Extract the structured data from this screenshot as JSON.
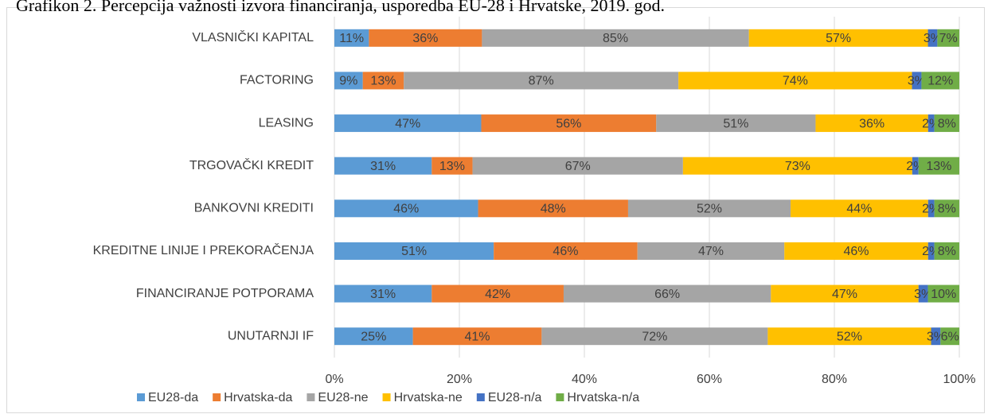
{
  "chart_data": {
    "type": "bar",
    "orientation": "horizontal",
    "stacked": "percent",
    "title": "Grafikon 2. Percepcija važnosti izvora financiranja, usporedba EU-28 i Hrvatske, 2019. god.",
    "categories": [
      "VLASNIČKI KAPITAL",
      "FACTORING",
      "LEASING",
      "TRGOVAČKI KREDIT",
      "BANKOVNI KREDITI",
      "KREDITNE LINIJE I PREKORAČENJA",
      "FINANCIRANJE POTPORAMA",
      "UNUTARNJI IF"
    ],
    "series": [
      {
        "name": "EU28-da",
        "color": "#5b9bd5",
        "values": [
          11,
          9,
          47,
          31,
          46,
          51,
          31,
          25
        ],
        "value_labels": [
          "11%",
          "9%",
          "47%",
          "31%",
          "46%",
          "51%",
          "31%",
          "25%"
        ]
      },
      {
        "name": "Hrvatska-da",
        "color": "#ed7d31",
        "values": [
          36,
          13,
          56,
          13,
          48,
          46,
          42,
          41
        ],
        "value_labels": [
          "36%",
          "13%",
          "56%",
          "13%",
          "48%",
          "46%",
          "42%",
          "41%"
        ]
      },
      {
        "name": "EU28-ne",
        "color": "#a5a5a5",
        "values": [
          85,
          87,
          51,
          67,
          52,
          47,
          66,
          72
        ],
        "value_labels": [
          "85%",
          "87%",
          "51%",
          "67%",
          "52%",
          "47%",
          "66%",
          "72%"
        ]
      },
      {
        "name": "Hrvatska-ne",
        "color": "#ffc000",
        "values": [
          57,
          74,
          36,
          73,
          44,
          46,
          47,
          52
        ],
        "value_labels": [
          "57%",
          "74%",
          "36%",
          "73%",
          "44%",
          "46%",
          "47%",
          "52%"
        ]
      },
      {
        "name": "EU28-n/a",
        "color": "#4472c4",
        "values": [
          3,
          3,
          2,
          2,
          2,
          2,
          3,
          3
        ],
        "value_labels": [
          "3%",
          "3%",
          "2%",
          "2%",
          "2%",
          "2%",
          "3%",
          "3%"
        ]
      },
      {
        "name": "Hrvatska-n/a",
        "color": "#70ad47",
        "values": [
          7,
          12,
          8,
          13,
          8,
          8,
          10,
          6
        ],
        "value_labels": [
          "7%",
          "12%",
          "8%",
          "13%",
          "8%",
          "8%",
          "10%",
          "6%"
        ]
      }
    ],
    "xlim": [
      0,
      100
    ],
    "xticks": [
      {
        "value": 0,
        "label": "0%"
      },
      {
        "value": 20,
        "label": "20%"
      },
      {
        "value": 40,
        "label": "40%"
      },
      {
        "value": 60,
        "label": "60%"
      },
      {
        "value": 80,
        "label": "80%"
      },
      {
        "value": 100,
        "label": "100%"
      }
    ],
    "grid": true,
    "legend": "bottom"
  }
}
